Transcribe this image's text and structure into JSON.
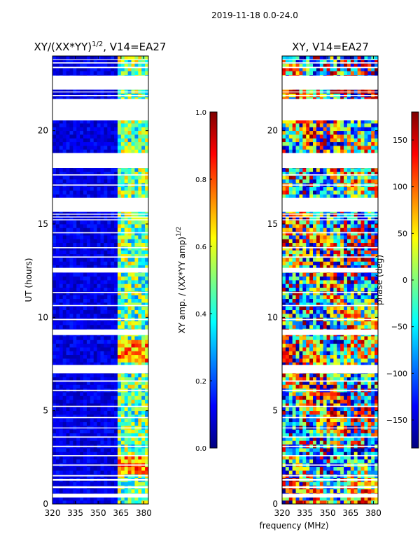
{
  "suptitle": "2019-11-18 0.0-24.0",
  "xlabel_shared": "frequency (MHz)",
  "colormap": "jet",
  "colormap_stops": [
    "#00007f",
    "#0000ff",
    "#007fff",
    "#00ffff",
    "#7fff7f",
    "#ffff00",
    "#ff7f00",
    "#ff0000",
    "#7f0000"
  ],
  "chart_data": [
    {
      "type": "heatmap",
      "panel": "left",
      "title_main": "XY/(XX*YY)",
      "title_sup": "1/2",
      "title_tail": ", V14=EA27",
      "xlabel": "",
      "ylabel": "UT (hours)",
      "xlim": [
        320,
        383
      ],
      "ylim": [
        0,
        24
      ],
      "xticks": [
        320,
        335,
        350,
        365,
        380
      ],
      "yticks": [
        0,
        5,
        10,
        15,
        20
      ],
      "colorbar": {
        "label_main": "XY amp. / (XX*YY amp)",
        "label_sup": "1/2",
        "range": [
          0.0,
          1.0
        ],
        "ticks": [
          "0.0",
          "0.2",
          "0.4",
          "0.6",
          "0.8",
          "1.0"
        ],
        "tick_values": [
          0.0,
          0.2,
          0.4,
          0.6,
          0.8,
          1.0
        ]
      },
      "description": "normalized cross-hand amplitude vs frequency and UT; mostly low (~0.05), elevated (~0.3-0.8) in 362-381 MHz band"
    },
    {
      "type": "heatmap",
      "panel": "right",
      "title_main": "XY, V14=EA27",
      "xlabel": "frequency (MHz)",
      "ylabel": "",
      "xlim": [
        320,
        383
      ],
      "ylim": [
        0,
        24
      ],
      "xticks": [
        320,
        335,
        350,
        365,
        380
      ],
      "yticks": [
        0,
        5,
        10,
        15,
        20
      ],
      "colorbar": {
        "label_main": "phase (deg)",
        "range": [
          -180,
          180
        ],
        "ticks": [
          "150",
          "100",
          "50",
          "0",
          "−50",
          "−100",
          "−150"
        ],
        "tick_values": [
          150,
          100,
          50,
          0,
          -50,
          -100,
          -150
        ]
      },
      "description": "cross-hand phase vs frequency and UT; noisy wrapped phase spanning -180 to 180 degrees"
    }
  ],
  "flagged_hour_ranges": [
    [
      0.35,
      0.55
    ],
    [
      0.85,
      0.95
    ],
    [
      1.25,
      1.35
    ],
    [
      1.48,
      1.55
    ],
    [
      2.05,
      2.12
    ],
    [
      2.55,
      2.62
    ],
    [
      3.05,
      3.12
    ],
    [
      3.55,
      3.62
    ],
    [
      4.05,
      4.1
    ],
    [
      4.6,
      4.66
    ],
    [
      5.2,
      5.26
    ],
    [
      6.05,
      6.12
    ],
    [
      6.55,
      6.62
    ],
    [
      7.0,
      7.45
    ],
    [
      9.05,
      9.35
    ],
    [
      9.85,
      9.92
    ],
    [
      10.6,
      10.66
    ],
    [
      11.3,
      11.36
    ],
    [
      12.4,
      12.65
    ],
    [
      13.2,
      13.26
    ],
    [
      13.7,
      13.76
    ],
    [
      14.5,
      14.56
    ],
    [
      15.2,
      15.25
    ],
    [
      15.35,
      15.4
    ],
    [
      15.5,
      15.55
    ],
    [
      15.65,
      16.4
    ],
    [
      17.05,
      17.12
    ],
    [
      17.6,
      17.66
    ],
    [
      18.0,
      18.8
    ],
    [
      20.55,
      21.7
    ],
    [
      21.85,
      21.9
    ],
    [
      22.05,
      22.1
    ],
    [
      22.2,
      22.95
    ],
    [
      23.35,
      23.42
    ],
    [
      23.6,
      23.66
    ],
    [
      23.78,
      23.82
    ]
  ]
}
